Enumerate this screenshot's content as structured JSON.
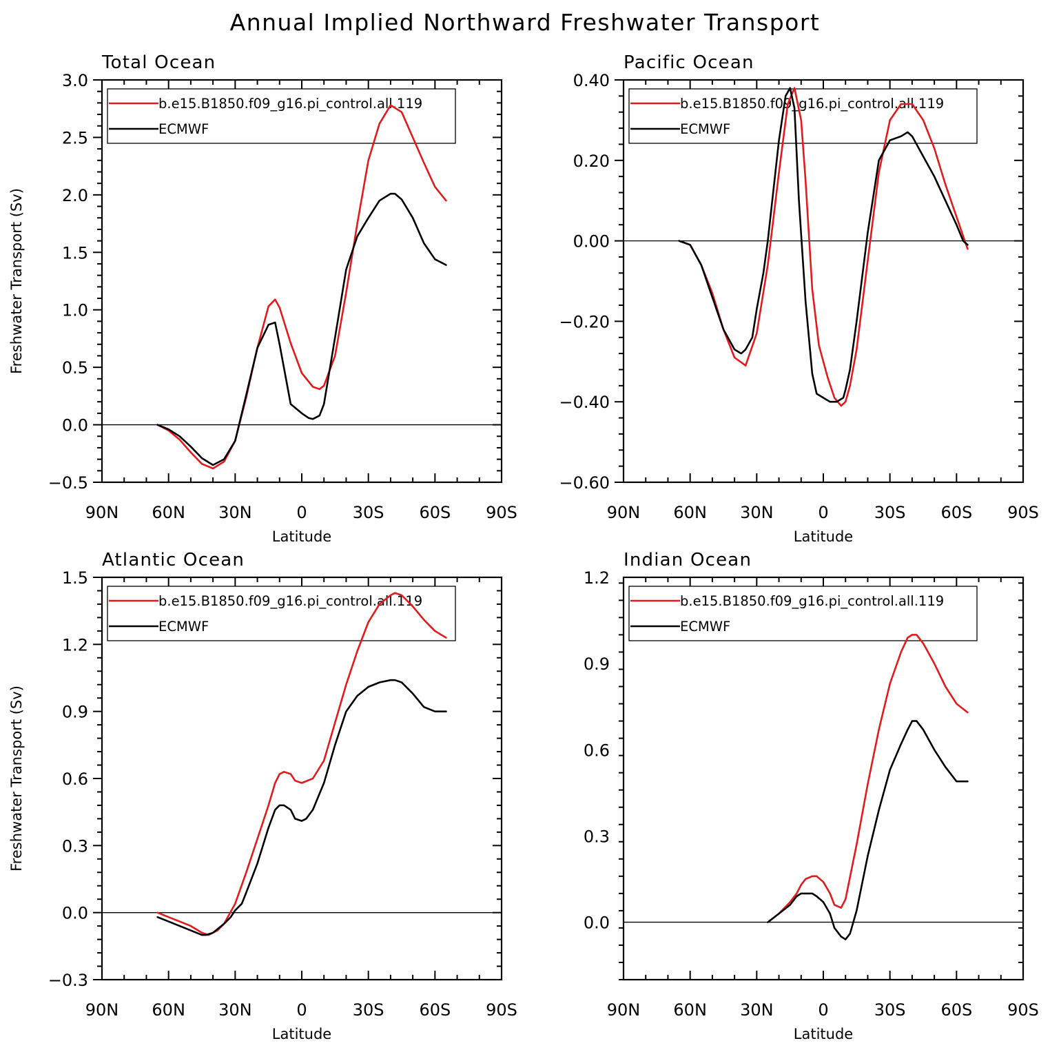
{
  "chart_data": {
    "title": "Annual Implied Northward Freshwater Transport",
    "colors": {
      "model": "#e31a1c",
      "obs": "#000000",
      "zero_line": "#000000"
    },
    "panels": [
      {
        "id": "total",
        "type": "line",
        "title": "Total Ocean",
        "xlabel": "Latitude",
        "ylabel": "Freshwater Transport (Sv)",
        "xlim": [
          90,
          -90
        ],
        "ylim": [
          -0.5,
          3.0
        ],
        "xticks": [
          90,
          60,
          30,
          0,
          -30,
          -60,
          -90
        ],
        "xtick_labels": [
          "90N",
          "60N",
          "30N",
          "0",
          "30S",
          "60S",
          "90S"
        ],
        "yticks": [
          -0.5,
          0.0,
          0.5,
          1.0,
          1.5,
          2.0,
          2.5,
          3.0
        ],
        "ytick_labels": [
          "−0.5",
          "0.0",
          "0.5",
          "1.0",
          "1.5",
          "2.0",
          "2.5",
          "3.0"
        ],
        "series": [
          {
            "name": "b.e15.B1850.f09_g16.pi_control.all.119",
            "color": "#e31a1c",
            "x": [
              65,
              60,
              55,
              50,
              45,
              40,
              35,
              30,
              25,
              20,
              15,
              12,
              10,
              5,
              0,
              -5,
              -8,
              -10,
              -15,
              -20,
              -25,
              -30,
              -35,
              -40,
              -45,
              -50,
              -55,
              -60,
              -65
            ],
            "y": [
              0.0,
              -0.05,
              -0.13,
              -0.24,
              -0.34,
              -0.38,
              -0.32,
              -0.14,
              0.24,
              0.67,
              1.03,
              1.09,
              1.02,
              0.71,
              0.45,
              0.33,
              0.31,
              0.34,
              0.6,
              1.15,
              1.75,
              2.3,
              2.62,
              2.78,
              2.72,
              2.5,
              2.28,
              2.07,
              1.95
            ]
          },
          {
            "name": "ECMWF",
            "color": "#000000",
            "x": [
              65,
              60,
              55,
              50,
              45,
              40,
              35,
              30,
              25,
              20,
              15,
              12,
              10,
              5,
              0,
              -3,
              -5,
              -8,
              -10,
              -15,
              -20,
              -25,
              -30,
              -35,
              -40,
              -42,
              -45,
              -50,
              -55,
              -60,
              -65
            ],
            "y": [
              0.0,
              -0.04,
              -0.1,
              -0.19,
              -0.29,
              -0.35,
              -0.3,
              -0.14,
              0.26,
              0.67,
              0.87,
              0.89,
              0.7,
              0.18,
              0.1,
              0.06,
              0.05,
              0.08,
              0.18,
              0.76,
              1.35,
              1.64,
              1.8,
              1.95,
              2.01,
              2.01,
              1.96,
              1.8,
              1.58,
              1.44,
              1.39
            ]
          }
        ]
      },
      {
        "id": "pacific",
        "type": "line",
        "title": "Pacific Ocean",
        "xlabel": "Latitude",
        "ylabel": "",
        "xlim": [
          90,
          -90
        ],
        "ylim": [
          -0.6,
          0.4
        ],
        "xticks": [
          90,
          60,
          30,
          0,
          -30,
          -60,
          -90
        ],
        "xtick_labels": [
          "90N",
          "60N",
          "30N",
          "0",
          "30S",
          "60S",
          "90S"
        ],
        "yticks": [
          -0.6,
          -0.4,
          -0.2,
          0.0,
          0.2,
          0.4
        ],
        "ytick_labels": [
          "−0.60",
          "−0.40",
          "−0.20",
          "0.00",
          "0.20",
          "0.40"
        ],
        "series": [
          {
            "name": "b.e15.B1850.f09_g16.pi_control.all.119",
            "color": "#e31a1c",
            "x": [
              65,
              60,
              55,
              50,
              45,
              40,
              35,
              30,
              25,
              20,
              16,
              13,
              10,
              8,
              5,
              2,
              0,
              -2,
              -5,
              -8,
              -10,
              -12,
              -15,
              -20,
              -25,
              -30,
              -35,
              -40,
              -45,
              -50,
              -55,
              -60,
              -65
            ],
            "y": [
              0.0,
              -0.01,
              -0.06,
              -0.13,
              -0.22,
              -0.29,
              -0.31,
              -0.23,
              -0.06,
              0.17,
              0.34,
              0.38,
              0.3,
              0.15,
              -0.12,
              -0.26,
              -0.3,
              -0.34,
              -0.39,
              -0.41,
              -0.4,
              -0.36,
              -0.27,
              -0.05,
              0.17,
              0.3,
              0.34,
              0.34,
              0.3,
              0.23,
              0.14,
              0.06,
              -0.02
            ]
          },
          {
            "name": "ECMWF",
            "color": "#000000",
            "x": [
              65,
              60,
              55,
              50,
              45,
              40,
              37,
              35,
              32,
              30,
              27,
              25,
              20,
              17,
              15,
              13,
              11,
              8,
              5,
              3,
              0,
              -3,
              -6,
              -9,
              -10,
              -12,
              -15,
              -20,
              -25,
              -30,
              -35,
              -38,
              -40,
              -45,
              -50,
              -55,
              -60,
              -63,
              -65
            ],
            "y": [
              0.0,
              -0.01,
              -0.06,
              -0.14,
              -0.22,
              -0.27,
              -0.28,
              -0.27,
              -0.24,
              -0.17,
              -0.08,
              0.0,
              0.25,
              0.36,
              0.38,
              0.33,
              0.1,
              -0.15,
              -0.33,
              -0.38,
              -0.39,
              -0.4,
              -0.4,
              -0.39,
              -0.37,
              -0.32,
              -0.2,
              0.02,
              0.2,
              0.25,
              0.26,
              0.27,
              0.26,
              0.21,
              0.16,
              0.1,
              0.04,
              0.0,
              -0.01
            ]
          }
        ]
      },
      {
        "id": "atlantic",
        "type": "line",
        "title": "Atlantic Ocean",
        "xlabel": "Latitude",
        "ylabel": "Freshwater Transport (Sv)",
        "xlim": [
          90,
          -90
        ],
        "ylim": [
          -0.3,
          1.5
        ],
        "xticks": [
          90,
          60,
          30,
          0,
          -30,
          -60,
          -90
        ],
        "xtick_labels": [
          "90N",
          "60N",
          "30N",
          "0",
          "30S",
          "60S",
          "90S"
        ],
        "yticks": [
          -0.3,
          0.0,
          0.3,
          0.6,
          0.9,
          1.2,
          1.5
        ],
        "ytick_labels": [
          "−0.3",
          "0.0",
          "0.3",
          "0.6",
          "0.9",
          "1.2",
          "1.5"
        ],
        "series": [
          {
            "name": "b.e15.B1850.f09_g16.pi_control.all.119",
            "color": "#e31a1c",
            "x": [
              65,
              60,
              55,
              50,
              45,
              42,
              38,
              35,
              30,
              25,
              20,
              15,
              12,
              10,
              8,
              5,
              3,
              0,
              -5,
              -10,
              -15,
              -20,
              -25,
              -30,
              -35,
              -40,
              -42,
              -45,
              -50,
              -55,
              -60,
              -65
            ],
            "y": [
              0.0,
              -0.02,
              -0.04,
              -0.06,
              -0.09,
              -0.1,
              -0.08,
              -0.05,
              0.04,
              0.18,
              0.33,
              0.48,
              0.58,
              0.62,
              0.63,
              0.62,
              0.59,
              0.58,
              0.6,
              0.68,
              0.85,
              1.02,
              1.17,
              1.3,
              1.38,
              1.42,
              1.43,
              1.42,
              1.37,
              1.31,
              1.26,
              1.23
            ]
          },
          {
            "name": "ECMWF",
            "color": "#000000",
            "x": [
              65,
              60,
              55,
              50,
              45,
              43,
              40,
              35,
              32,
              30,
              27,
              25,
              20,
              15,
              12,
              10,
              8,
              5,
              3,
              0,
              -2,
              -5,
              -10,
              -15,
              -20,
              -25,
              -30,
              -35,
              -40,
              -42,
              -45,
              -50,
              -55,
              -60,
              -65
            ],
            "y": [
              -0.02,
              -0.04,
              -0.06,
              -0.08,
              -0.1,
              -0.1,
              -0.09,
              -0.05,
              -0.02,
              0.01,
              0.04,
              0.09,
              0.22,
              0.38,
              0.46,
              0.48,
              0.48,
              0.46,
              0.42,
              0.41,
              0.42,
              0.46,
              0.58,
              0.75,
              0.9,
              0.97,
              1.01,
              1.03,
              1.04,
              1.04,
              1.03,
              0.98,
              0.92,
              0.9,
              0.9
            ]
          }
        ]
      },
      {
        "id": "indian",
        "type": "line",
        "title": "Indian Ocean",
        "xlabel": "Latitude",
        "ylabel": "",
        "xlim": [
          90,
          -90
        ],
        "ylim": [
          -0.2,
          1.2
        ],
        "xticks": [
          90,
          60,
          30,
          0,
          -30,
          -60,
          -90
        ],
        "xtick_labels": [
          "90N",
          "60N",
          "30N",
          "0",
          "30S",
          "60S",
          "90S"
        ],
        "yticks": [
          0.0,
          0.3,
          0.6,
          0.9,
          1.2
        ],
        "ytick_labels": [
          "0.0",
          "0.3",
          "0.6",
          "0.9",
          "1.2"
        ],
        "series": [
          {
            "name": "b.e15.B1850.f09_g16.pi_control.all.119",
            "color": "#e31a1c",
            "x": [
              25,
              20,
              15,
              12,
              10,
              8,
              5,
              3,
              0,
              -3,
              -5,
              -8,
              -10,
              -15,
              -20,
              -25,
              -30,
              -35,
              -38,
              -40,
              -42,
              -45,
              -50,
              -55,
              -60,
              -65
            ],
            "y": [
              0.0,
              0.03,
              0.07,
              0.1,
              0.13,
              0.15,
              0.16,
              0.16,
              0.14,
              0.1,
              0.06,
              0.05,
              0.08,
              0.27,
              0.48,
              0.67,
              0.83,
              0.94,
              0.99,
              1.0,
              1.0,
              0.97,
              0.9,
              0.82,
              0.76,
              0.73
            ]
          },
          {
            "name": "ECMWF",
            "color": "#000000",
            "x": [
              25,
              20,
              15,
              12,
              10,
              8,
              5,
              3,
              0,
              -3,
              -5,
              -8,
              -10,
              -12,
              -15,
              -20,
              -25,
              -30,
              -35,
              -38,
              -40,
              -42,
              -45,
              -50,
              -55,
              -60,
              -65
            ],
            "y": [
              0.0,
              0.03,
              0.06,
              0.09,
              0.1,
              0.1,
              0.1,
              0.09,
              0.07,
              0.03,
              -0.02,
              -0.05,
              -0.06,
              -0.04,
              0.04,
              0.23,
              0.39,
              0.53,
              0.62,
              0.67,
              0.7,
              0.7,
              0.67,
              0.6,
              0.54,
              0.49,
              0.49
            ]
          }
        ]
      }
    ]
  }
}
